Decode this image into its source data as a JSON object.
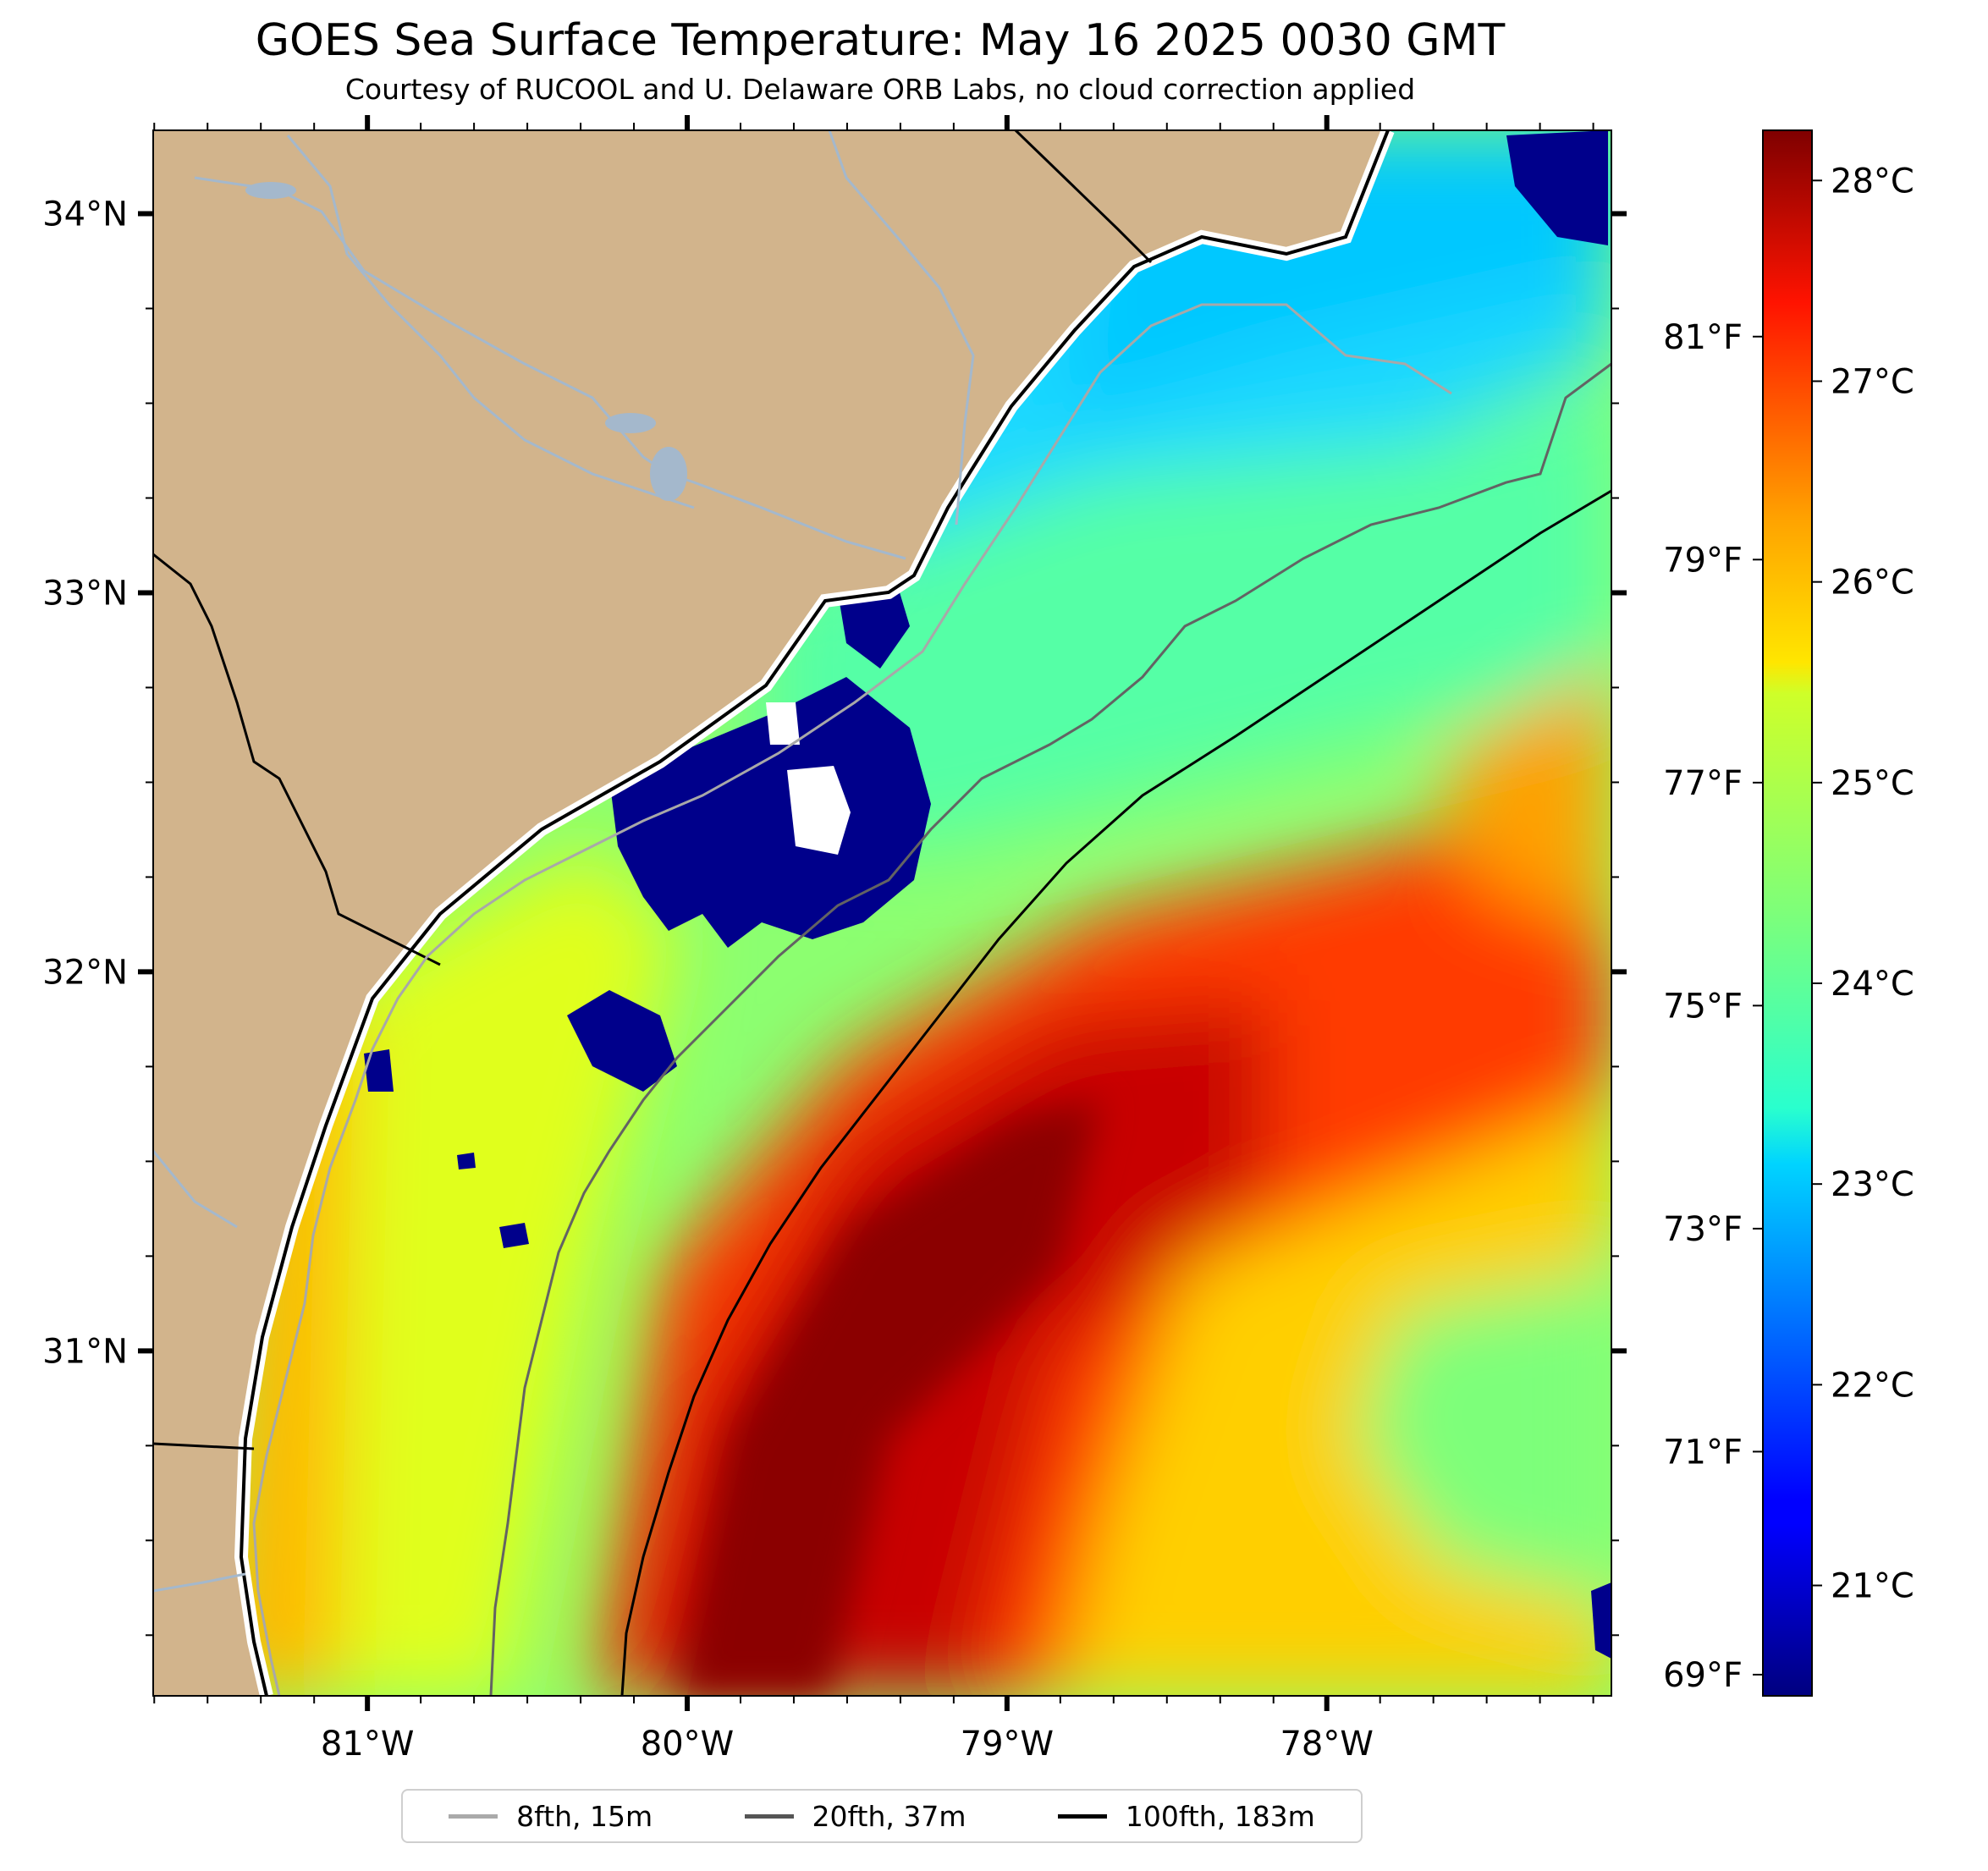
{
  "title": "GOES Sea Surface Temperature: May 16 2025 0030 GMT",
  "subtitle": "Courtesy of RUCOOL and U. Delaware ORB Labs, no cloud correction applied",
  "map": {
    "lon_range": [
      -81.67,
      -77.11
    ],
    "lat_range": [
      30.09,
      34.22
    ],
    "lon_ticks": [
      {
        "v": -81,
        "label": "81°W"
      },
      {
        "v": -80,
        "label": "80°W"
      },
      {
        "v": -79,
        "label": "79°W"
      },
      {
        "v": -78,
        "label": "78°W"
      }
    ],
    "lat_ticks": [
      {
        "v": 34,
        "label": "34°N"
      },
      {
        "v": 33,
        "label": "33°N"
      },
      {
        "v": 32,
        "label": "32°N"
      },
      {
        "v": 31,
        "label": "31°N"
      }
    ],
    "land_color": "#d2b48c",
    "nodata_color": "#ffffff",
    "cloud_color": "#00008b"
  },
  "colorbar": {
    "colormap": "jet",
    "celsius_range": [
      20.45,
      28.25
    ],
    "celsius_ticks": [
      {
        "v": 21,
        "label": "21°C"
      },
      {
        "v": 22,
        "label": "22°C"
      },
      {
        "v": 23,
        "label": "23°C"
      },
      {
        "v": 24,
        "label": "24°C"
      },
      {
        "v": 25,
        "label": "25°C"
      },
      {
        "v": 26,
        "label": "26°C"
      },
      {
        "v": 27,
        "label": "27°C"
      },
      {
        "v": 28,
        "label": "28°C"
      }
    ],
    "fahrenheit_ticks": [
      {
        "v": 69,
        "label": "69°F"
      },
      {
        "v": 71,
        "label": "71°F"
      },
      {
        "v": 73,
        "label": "73°F"
      },
      {
        "v": 75,
        "label": "75°F"
      },
      {
        "v": 77,
        "label": "77°F"
      },
      {
        "v": 79,
        "label": "79°F"
      },
      {
        "v": 81,
        "label": "81°F"
      }
    ]
  },
  "legend": [
    {
      "label": "8fth, 15m",
      "color": "#aaaaaa"
    },
    {
      "label": "20fth, 37m",
      "color": "#555555"
    },
    {
      "label": "100fth, 183m",
      "color": "#000000"
    }
  ]
}
